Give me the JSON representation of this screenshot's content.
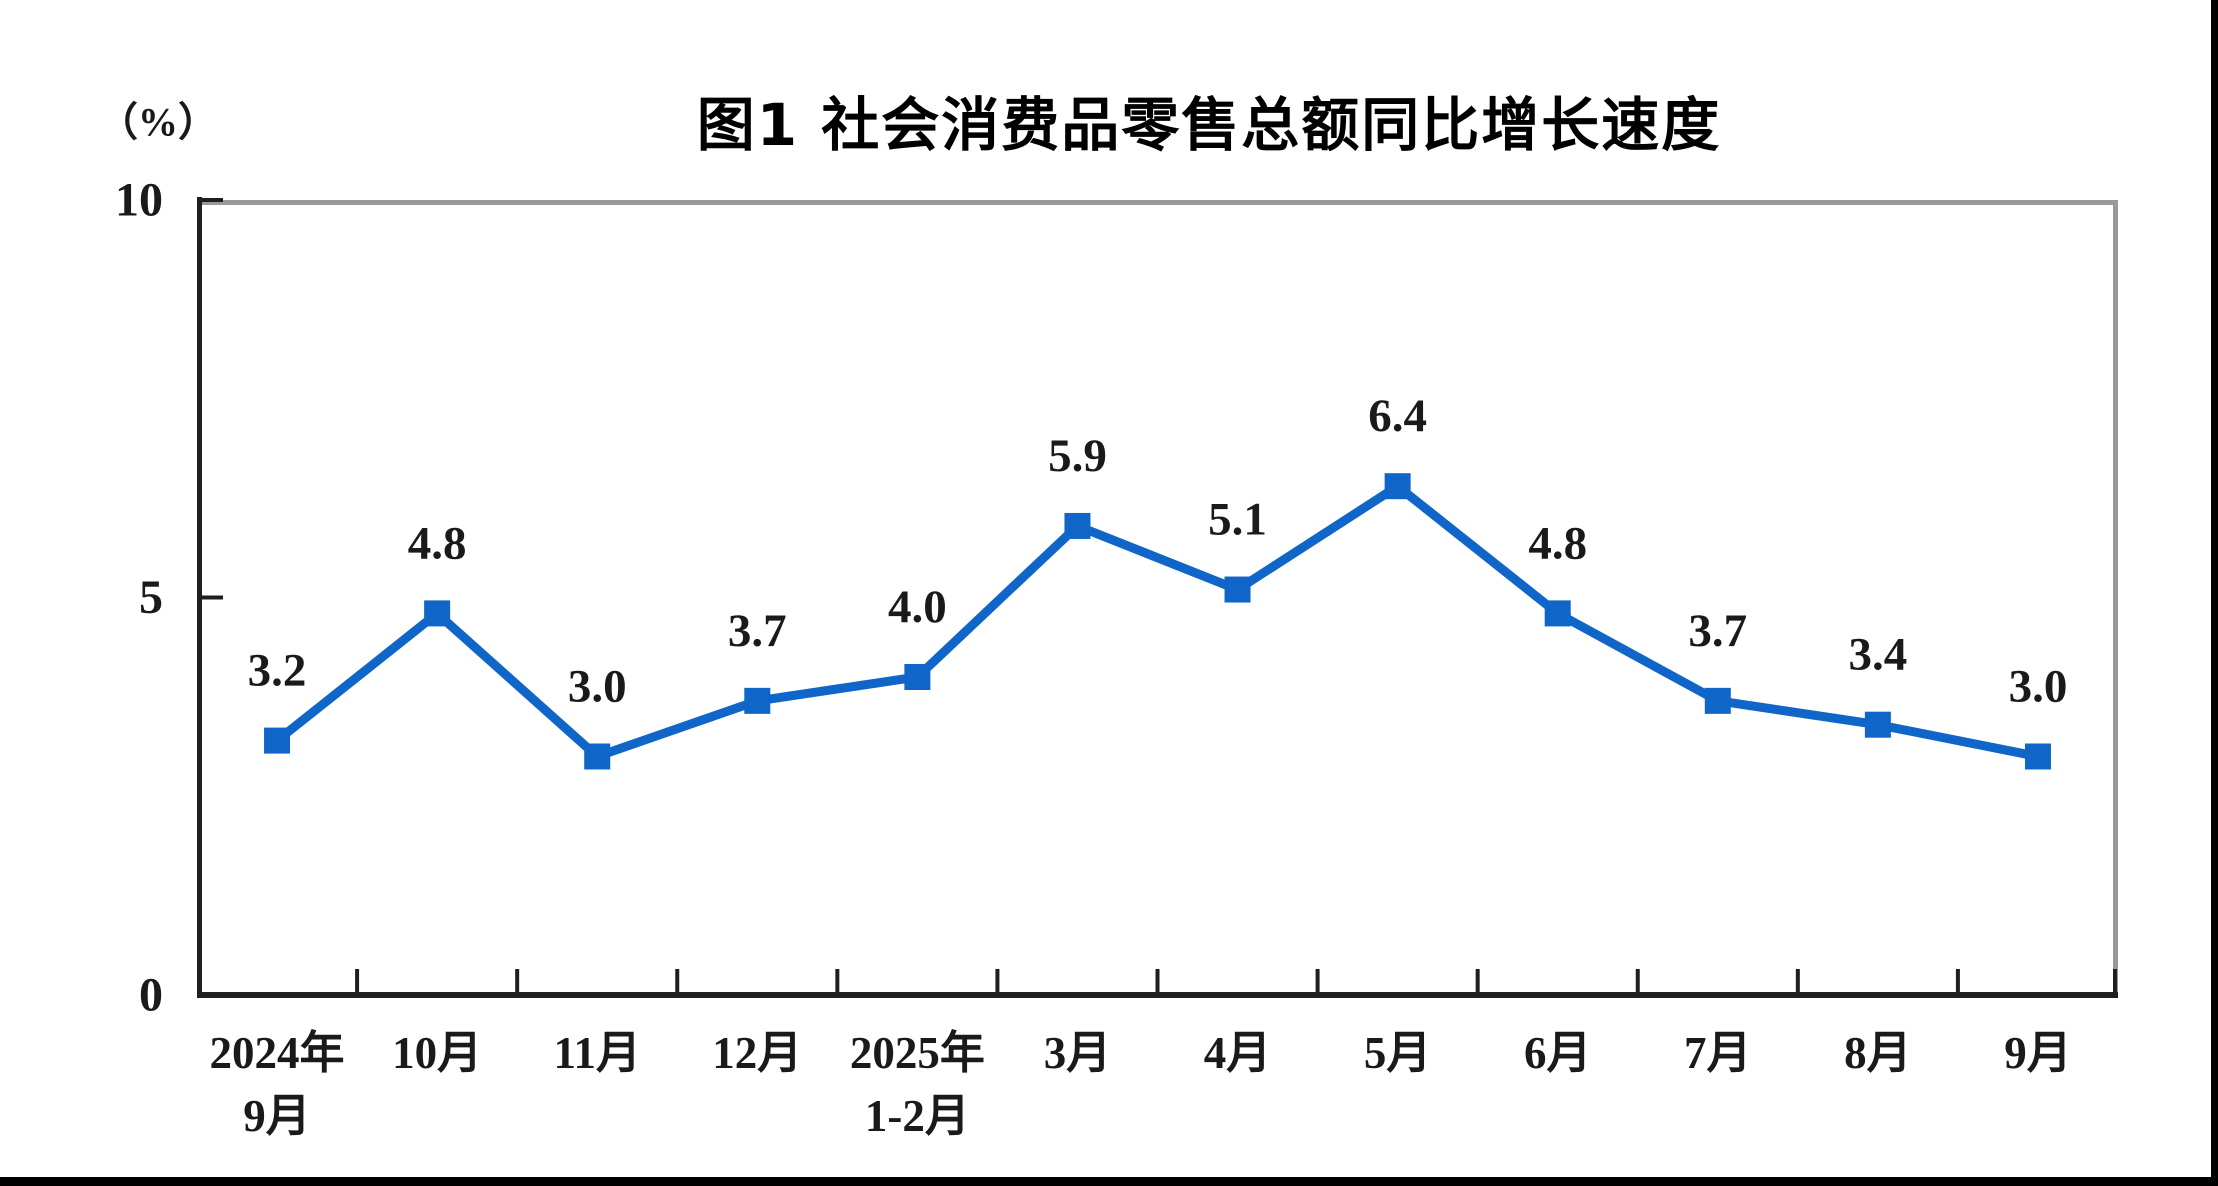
{
  "chart_data": {
    "type": "line",
    "title": "图1  社会消费品零售总额同比增长速度",
    "unit_label": "（%）",
    "categories": [
      "2024年9月",
      "10月",
      "11月",
      "12月",
      "2025年1-2月",
      "3月",
      "4月",
      "5月",
      "6月",
      "7月",
      "8月",
      "9月"
    ],
    "category_lines": [
      [
        "2024年",
        "9月"
      ],
      [
        "10月"
      ],
      [
        "11月"
      ],
      [
        "12月"
      ],
      [
        "2025年",
        "1-2月"
      ],
      [
        "3月"
      ],
      [
        "4月"
      ],
      [
        "5月"
      ],
      [
        "6月"
      ],
      [
        "7月"
      ],
      [
        "8月"
      ],
      [
        "9月"
      ]
    ],
    "values": [
      3.2,
      4.8,
      3.0,
      3.7,
      4.0,
      5.9,
      5.1,
      6.4,
      4.8,
      3.7,
      3.4,
      3.0
    ],
    "data_labels": [
      "3.2",
      "4.8",
      "3.0",
      "3.7",
      "4.0",
      "5.9",
      "5.1",
      "6.4",
      "4.8",
      "3.7",
      "3.4",
      "3.0"
    ],
    "xlabel": "",
    "ylabel": "（%）",
    "ylim": [
      0,
      10
    ],
    "yticks": [
      0,
      5,
      10
    ],
    "ytick_labels": [
      "0",
      "5",
      "10"
    ],
    "grid": false,
    "legend": "none",
    "marker": "square",
    "tick_direction": "inside",
    "x_tick_style": "between-categories",
    "colors": {
      "line": "#1065C8",
      "marker": "#1065C8",
      "axis": "#1f1f1f",
      "plot_border": "#999999",
      "label_text": "#1a1a1a",
      "background": "#ffffff",
      "frame": "#000000"
    }
  }
}
